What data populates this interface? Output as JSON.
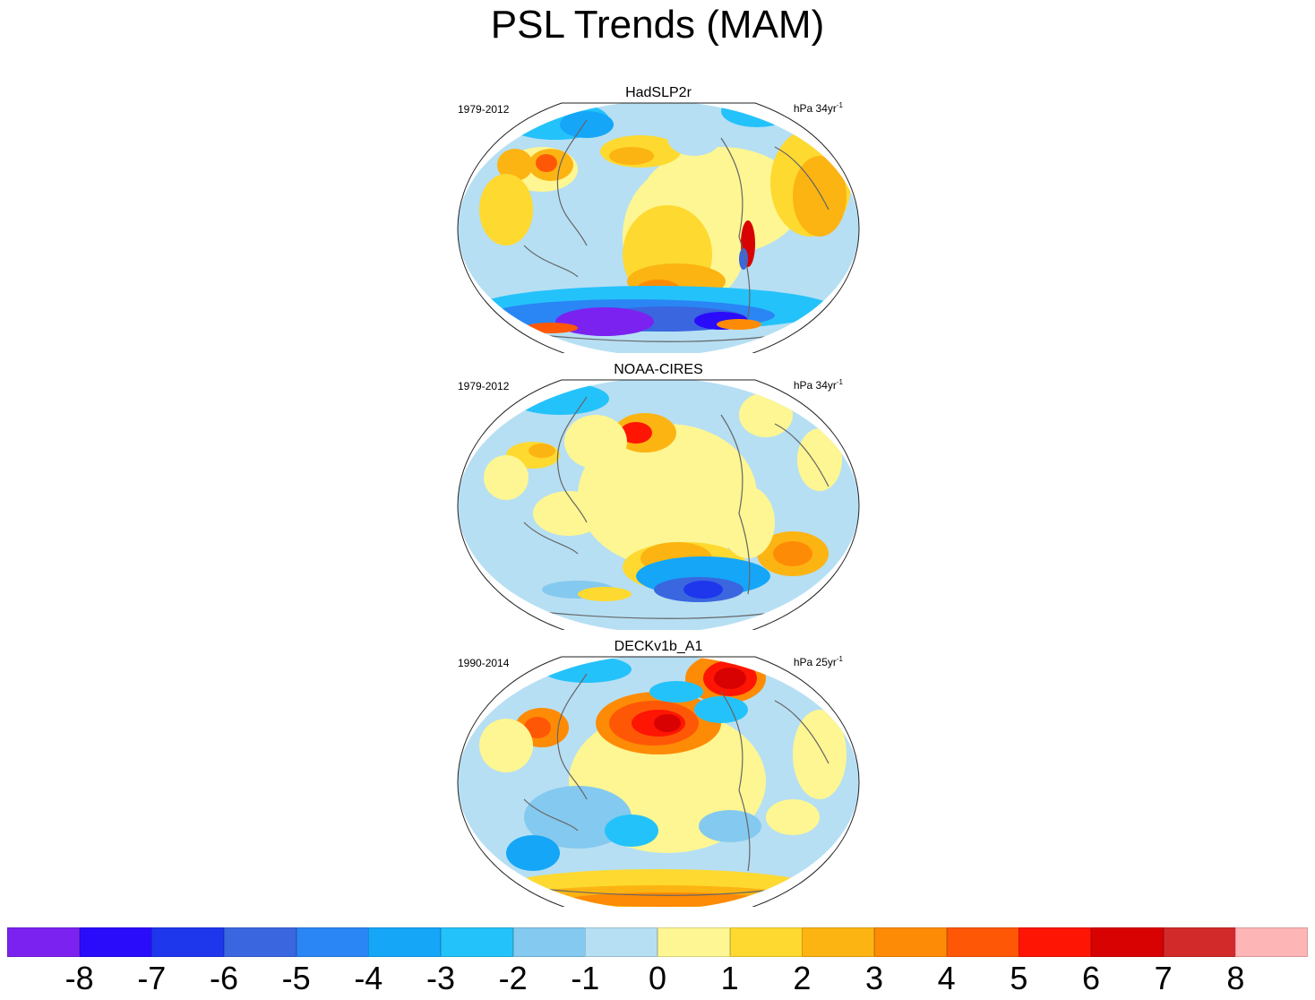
{
  "title": "PSL Trends (MAM)",
  "panels": [
    {
      "name": "HadSLP2r",
      "years": "1979-2012",
      "units": "hPa 34yr",
      "units_exp": "-1",
      "pattern": "had"
    },
    {
      "name": "NOAA-CIRES",
      "years": "1979-2012",
      "units": "hPa 34yr",
      "units_exp": "-1",
      "pattern": "noaa"
    },
    {
      "name": "DECKv1b_A1",
      "years": "1990-2014",
      "units": "hPa 25yr",
      "units_exp": "-1",
      "pattern": "deck"
    }
  ],
  "colorbar": {
    "colors": [
      "#7b22f0",
      "#2a0cfb",
      "#1e37ec",
      "#3a66e0",
      "#2a86f4",
      "#15a6f8",
      "#24c2fa",
      "#84c9ef",
      "#b6dff3",
      "#fdf692",
      "#fed930",
      "#fcb412",
      "#fe8b05",
      "#fe5806",
      "#fe1503",
      "#d80202",
      "#d22a2a",
      "#feb5b5"
    ],
    "labels": [
      "-8",
      "-7",
      "-6",
      "-5",
      "-4",
      "-3",
      "-2",
      "-1",
      "0",
      "1",
      "2",
      "3",
      "4",
      "5",
      "6",
      "7",
      "8"
    ]
  }
}
